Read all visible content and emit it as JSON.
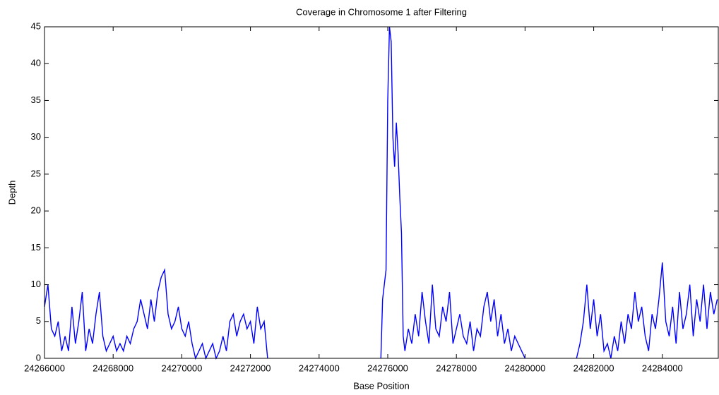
{
  "chart_data": {
    "type": "line",
    "title": "Coverage in Chromosome 1 after Filtering",
    "xlabel": "Base Position",
    "ylabel": "Depth",
    "xlim": [
      24266000,
      24285630
    ],
    "ylim": [
      0,
      45
    ],
    "xticks": [
      24266000,
      24268000,
      24270000,
      24272000,
      24274000,
      24276000,
      24278000,
      24280000,
      24282000,
      24284000
    ],
    "yticks": [
      0,
      5,
      10,
      15,
      20,
      25,
      30,
      35,
      40,
      45
    ],
    "grid": false,
    "series": [
      {
        "color": "#0000ff",
        "x": [
          24266000,
          24266100,
          24266200,
          24266300,
          24266400,
          24266500,
          24266600,
          24266700,
          24266800,
          24266900,
          24267000,
          24267100,
          24267200,
          24267300,
          24267400,
          24267500,
          24267600,
          24267700,
          24267800,
          24267900,
          24268000,
          24268100,
          24268200,
          24268300,
          24268400,
          24268500,
          24268600,
          24268700,
          24268800,
          24268900,
          24269000,
          24269100,
          24269200,
          24269300,
          24269400,
          24269500,
          24269600,
          24269700,
          24269800,
          24269900,
          24270000,
          24270100,
          24270200,
          24270300,
          24270400,
          24270500,
          24270600,
          24270700,
          24270800,
          24270900,
          24271000,
          24271100,
          24271200,
          24271300,
          24271400,
          24271500,
          24271600,
          24271700,
          24271800,
          24271900,
          24272000,
          24272100,
          24272200,
          24272300,
          24272400,
          24272500,
          24274000,
          24275800,
          24275850,
          24275900,
          24275950,
          24276000,
          24276050,
          24276100,
          24276150,
          24276200,
          24276250,
          24276300,
          24276350,
          24276400,
          24276450,
          24276500,
          24276600,
          24276700,
          24276800,
          24276900,
          24277000,
          24277100,
          24277200,
          24277300,
          24277400,
          24277500,
          24277600,
          24277700,
          24277800,
          24277900,
          24278000,
          24278100,
          24278200,
          24278300,
          24278400,
          24278500,
          24278600,
          24278700,
          24278800,
          24278900,
          24279000,
          24279100,
          24279200,
          24279300,
          24279400,
          24279500,
          24279600,
          24279700,
          24279800,
          24279900,
          24280000,
          24280800,
          24281500,
          24281600,
          24281700,
          24281800,
          24281900,
          24282000,
          24282100,
          24282200,
          24282300,
          24282400,
          24282500,
          24282600,
          24282700,
          24282800,
          24282900,
          24283000,
          24283100,
          24283200,
          24283300,
          24283400,
          24283500,
          24283600,
          24283700,
          24283800,
          24283900,
          24284000,
          24284100,
          24284200,
          24284300,
          24284400,
          24284500,
          24284600,
          24284700,
          24284800,
          24284900,
          24285000,
          24285100,
          24285200,
          24285300,
          24285400,
          24285500,
          24285600
        ],
        "values": [
          7,
          10,
          4,
          3,
          5,
          1,
          3,
          1,
          7,
          2,
          5,
          9,
          1,
          4,
          2,
          6,
          9,
          3,
          1,
          2,
          3,
          1,
          2,
          1,
          3,
          2,
          4,
          5,
          8,
          6,
          4,
          8,
          5,
          9,
          11,
          12,
          6,
          4,
          5,
          7,
          4,
          3,
          5,
          2,
          0,
          1,
          2,
          0,
          1,
          2,
          0,
          1,
          3,
          1,
          5,
          6,
          3,
          5,
          6,
          4,
          5,
          2,
          7,
          4,
          5,
          0,
          null,
          0,
          8,
          10,
          12,
          35,
          45,
          43,
          30,
          26,
          32,
          28,
          22,
          17,
          3,
          1,
          4,
          2,
          6,
          3,
          9,
          5,
          2,
          10,
          4,
          3,
          7,
          5,
          9,
          2,
          4,
          6,
          3,
          2,
          5,
          1,
          4,
          3,
          7,
          9,
          5,
          8,
          3,
          6,
          2,
          4,
          1,
          3,
          2,
          1,
          0,
          null,
          0,
          2,
          5,
          10,
          4,
          8,
          3,
          6,
          1,
          2,
          0,
          3,
          1,
          5,
          2,
          6,
          4,
          9,
          5,
          7,
          3,
          1,
          6,
          4,
          8,
          13,
          5,
          3,
          7,
          2,
          9,
          4,
          6,
          10,
          3,
          8,
          5,
          10,
          4,
          9,
          6,
          8
        ]
      }
    ]
  }
}
